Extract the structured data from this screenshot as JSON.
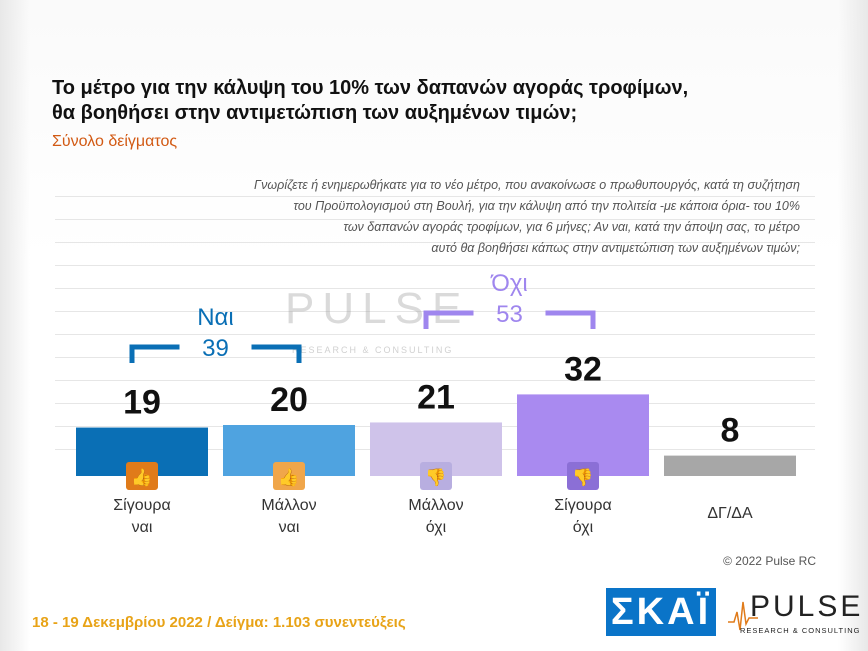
{
  "title_lines": [
    "Το μέτρο για την κάλυψη του 10% των δαπανών αγοράς τροφίμων,",
    "θα βοηθήσει στην αντιμετώπιση των αυξημένων τιμών;"
  ],
  "subtitle": "Σύνολο δείγματος",
  "question_lines": [
    "Γνωρίζετε ή ενημερωθήκατε για το νέο μέτρο, που ανακοίνωσε ο πρωθυπουργός, κατά τη συζήτηση",
    "του Προϋπολογισμού στη Βουλή, για την κάλυψη από την πολιτεία -με κάποια όρια- του 10%",
    "των δαπανών αγοράς τροφίμων, για 6 μήνες; Αν ναι, κατά την άποψη σας, το μέτρο",
    "αυτό θα βοηθήσει κάπως στην αντιμετώπιση των αυξημένων τιμών;"
  ],
  "chart_data": {
    "type": "bar",
    "categories": [
      [
        "Σίγουρα",
        "ναι"
      ],
      [
        "Μάλλον",
        "ναι"
      ],
      [
        "Μάλλον",
        "όχι"
      ],
      [
        "Σίγουρα",
        "όχι"
      ],
      [
        "ΔΓ/ΔΑ"
      ]
    ],
    "values": [
      19,
      20,
      21,
      32,
      8
    ],
    "colors": [
      "#0a6fb5",
      "#4fa3e0",
      "#cfc3ea",
      "#a98af0",
      "#a7a7a7"
    ],
    "icons": [
      "thumbs-up-double-icon",
      "thumbs-up-icon",
      "thumbs-down-icon",
      "thumbs-down-double-icon",
      ""
    ],
    "icon_colors": [
      "#e07b1a",
      "#f0a64a",
      "#b8aee0",
      "#8b6fd6",
      ""
    ],
    "ylim": [
      0,
      40
    ],
    "groups": [
      {
        "label": "Ναι",
        "value": "39",
        "color": "#0a6fb5",
        "spans": [
          0,
          1
        ]
      },
      {
        "label": "Όχι",
        "value": "53",
        "color": "#9f86ee",
        "spans": [
          2,
          3
        ]
      }
    ]
  },
  "watermark": {
    "name": "PULSE",
    "sub": "RESEARCH & CONSULTING"
  },
  "copyright": "© 2022 Pulse RC",
  "footer": {
    "date": "18 - 19  Δεκεμβρίου  2022  /  Δείγμα:  1.103 συνεντεύξεις",
    "skai_logo": "ΣΚΑΪ",
    "pulse_logo": "PULSE",
    "pulse_tag": "RESEARCH & CONSULTING"
  }
}
